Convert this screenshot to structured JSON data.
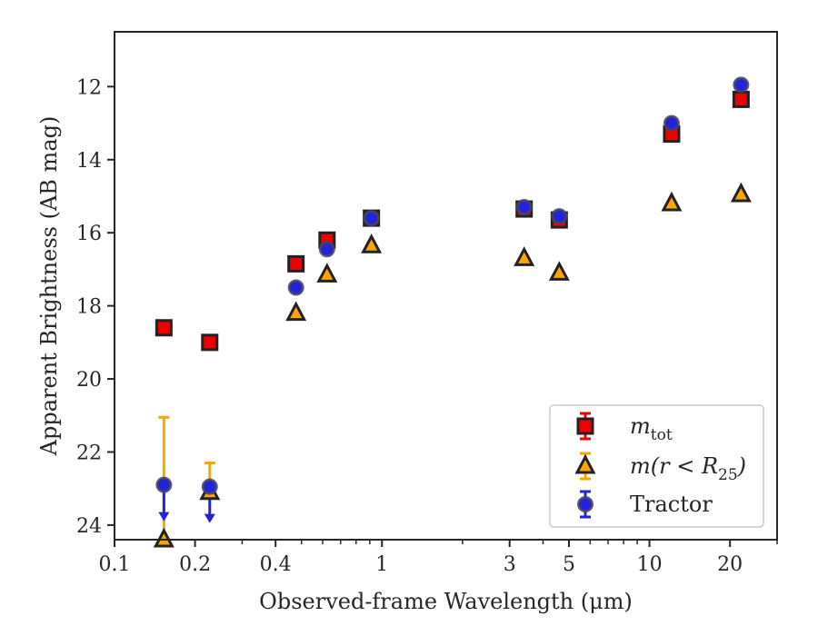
{
  "chart_data": {
    "type": "scatter",
    "xlabel": "Observed-frame Wavelength (μm)",
    "ylabel": "Apparent Brightness (AB mag)",
    "x_scale": "log",
    "xlim": [
      0.1,
      30
    ],
    "ylim": [
      24.4,
      10.5
    ],
    "y_inverted": true,
    "x_ticks": [
      {
        "value": 0.1,
        "label": "0.1"
      },
      {
        "value": 0.2,
        "label": "0.2"
      },
      {
        "value": 0.4,
        "label": "0.4"
      },
      {
        "value": 1,
        "label": "1"
      },
      {
        "value": 3,
        "label": "3"
      },
      {
        "value": 5,
        "label": "5"
      },
      {
        "value": 10,
        "label": "10"
      },
      {
        "value": 20,
        "label": "20"
      }
    ],
    "x_minor_ticks": [
      0.3,
      0.5,
      0.6,
      0.7,
      0.8,
      0.9,
      2,
      4,
      6,
      7,
      8,
      9,
      30
    ],
    "y_ticks": [
      {
        "value": 12,
        "label": "12"
      },
      {
        "value": 14,
        "label": "14"
      },
      {
        "value": 16,
        "label": "16"
      },
      {
        "value": 18,
        "label": "18"
      },
      {
        "value": 20,
        "label": "20"
      },
      {
        "value": 22,
        "label": "22"
      },
      {
        "value": 24,
        "label": "24"
      }
    ],
    "grid": false,
    "legend_position": "lower-right",
    "series": [
      {
        "name": "m_tot",
        "legend_main": "m",
        "legend_sub": "tot",
        "marker": "square",
        "color": "#ee0000",
        "edge": "#222222",
        "points": [
          {
            "x": 0.153,
            "y": 18.6
          },
          {
            "x": 0.227,
            "y": 19.0
          },
          {
            "x": 0.477,
            "y": 16.85
          },
          {
            "x": 0.623,
            "y": 16.2
          },
          {
            "x": 0.913,
            "y": 15.6
          },
          {
            "x": 3.4,
            "y": 15.35
          },
          {
            "x": 4.6,
            "y": 15.65
          },
          {
            "x": 12.1,
            "y": 13.3
          },
          {
            "x": 22.0,
            "y": 12.35
          }
        ]
      },
      {
        "name": "m(r < R_25)",
        "legend_main": "m(r < R",
        "legend_sub": "25",
        "legend_tail": ")",
        "marker": "triangle",
        "color": "#ffa500",
        "edge": "#222222",
        "points": [
          {
            "x": 0.153,
            "y": 24.4,
            "yerr_low": 3.35,
            "yerr_high": 0
          },
          {
            "x": 0.227,
            "y": 23.1,
            "yerr_low": 0.8,
            "yerr_high": 0
          },
          {
            "x": 0.477,
            "y": 18.2
          },
          {
            "x": 0.623,
            "y": 17.15
          },
          {
            "x": 0.913,
            "y": 16.35
          },
          {
            "x": 3.4,
            "y": 16.7
          },
          {
            "x": 4.6,
            "y": 17.1
          },
          {
            "x": 12.1,
            "y": 15.2
          },
          {
            "x": 22.0,
            "y": 14.95
          }
        ]
      },
      {
        "name": "Tractor",
        "legend_main": "Tractor",
        "marker": "circle",
        "color": "#2222dd",
        "edge": "#444466",
        "points": [
          {
            "x": 0.153,
            "y": 22.9,
            "upper_limit": true
          },
          {
            "x": 0.227,
            "y": 22.95,
            "upper_limit": true
          },
          {
            "x": 0.477,
            "y": 17.5
          },
          {
            "x": 0.623,
            "y": 16.45
          },
          {
            "x": 0.913,
            "y": 15.6
          },
          {
            "x": 3.4,
            "y": 15.3
          },
          {
            "x": 4.6,
            "y": 15.55
          },
          {
            "x": 12.1,
            "y": 13.0
          },
          {
            "x": 22.0,
            "y": 11.95
          }
        ]
      }
    ]
  }
}
